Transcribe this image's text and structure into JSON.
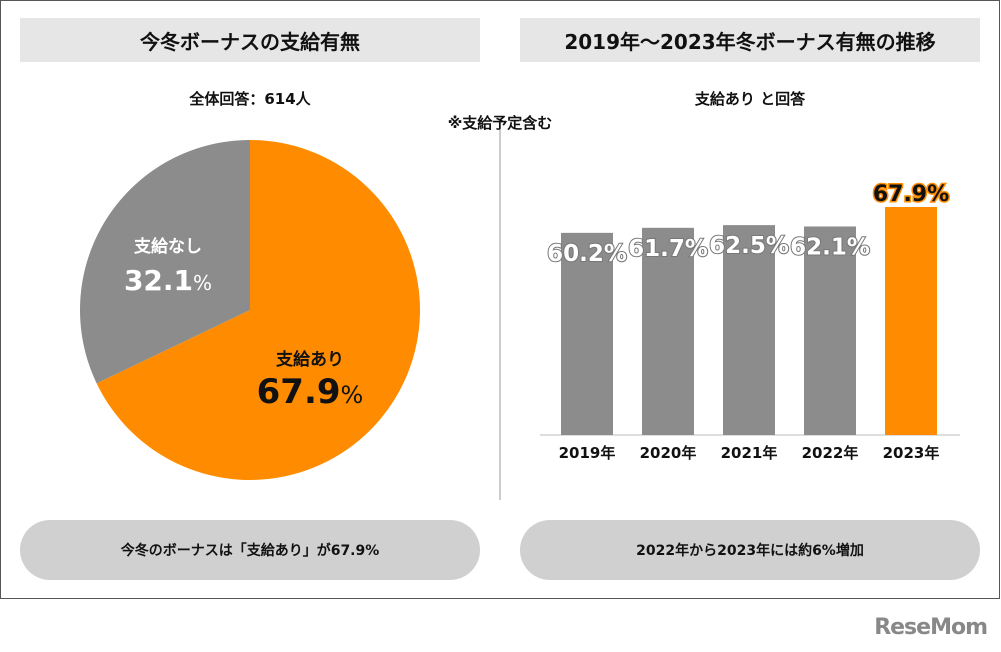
{
  "left": {
    "title": "今冬ボーナスの支給有無",
    "subtitle": "全体回答：614人",
    "note": "※支給予定含む",
    "summary": "今冬のボーナスは「支給あり」が67.9%"
  },
  "right": {
    "title": "2019年～2023年冬ボーナス有無の推移",
    "subtitle": "支給あり と回答",
    "summary": "2022年から2023年には約6%増加"
  },
  "logo": "ReseMom",
  "colors": {
    "orange": "#ff8c00",
    "gray": "#8c8c8c"
  },
  "chart_data": [
    {
      "type": "pie",
      "slices": [
        {
          "label": "支給あり",
          "value": 67.9,
          "display": "67.9",
          "color": "#ff8c00"
        },
        {
          "label": "支給なし",
          "value": 32.1,
          "display": "32.1",
          "color": "#8c8c8c"
        }
      ],
      "unit": "%"
    },
    {
      "type": "bar",
      "categories": [
        "2019年",
        "2020年",
        "2021年",
        "2022年",
        "2023年"
      ],
      "values": [
        60.2,
        61.7,
        62.5,
        62.1,
        67.9
      ],
      "labels": [
        "60.2%",
        "61.7%",
        "62.5%",
        "62.1%",
        "67.9%"
      ],
      "highlight_index": 4,
      "ylim": [
        0,
        67.9
      ],
      "grid": false
    }
  ]
}
